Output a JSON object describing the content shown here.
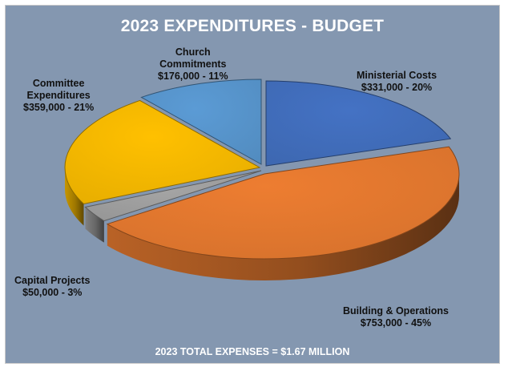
{
  "chart_data": {
    "type": "pie",
    "title": "2023 EXPENDITURES - BUDGET",
    "footer": "2023 TOTAL EXPENSES = $1.67 MILLION",
    "slices": [
      {
        "name_lines": [
          "Ministerial Costs"
        ],
        "value_text": "$331,000 - 20%",
        "value": 331000,
        "percent": 20,
        "color": "#4472c4"
      },
      {
        "name_lines": [
          "Building & Operations"
        ],
        "value_text": "$753,000 - 45%",
        "value": 753000,
        "percent": 45,
        "color": "#ed7d31"
      },
      {
        "name_lines": [
          "Capital Projects"
        ],
        "value_text": "$50,000 - 3%",
        "value": 50000,
        "percent": 3,
        "color": "#a5a5a5"
      },
      {
        "name_lines": [
          "Committee",
          "Expenditures"
        ],
        "value_text": "$359,000 - 21%",
        "value": 359000,
        "percent": 21,
        "color": "#ffc000"
      },
      {
        "name_lines": [
          "Church",
          "Commitments"
        ],
        "value_text": "$176,000 - 11%",
        "value": 176000,
        "percent": 11,
        "color": "#5b9bd5"
      }
    ]
  }
}
